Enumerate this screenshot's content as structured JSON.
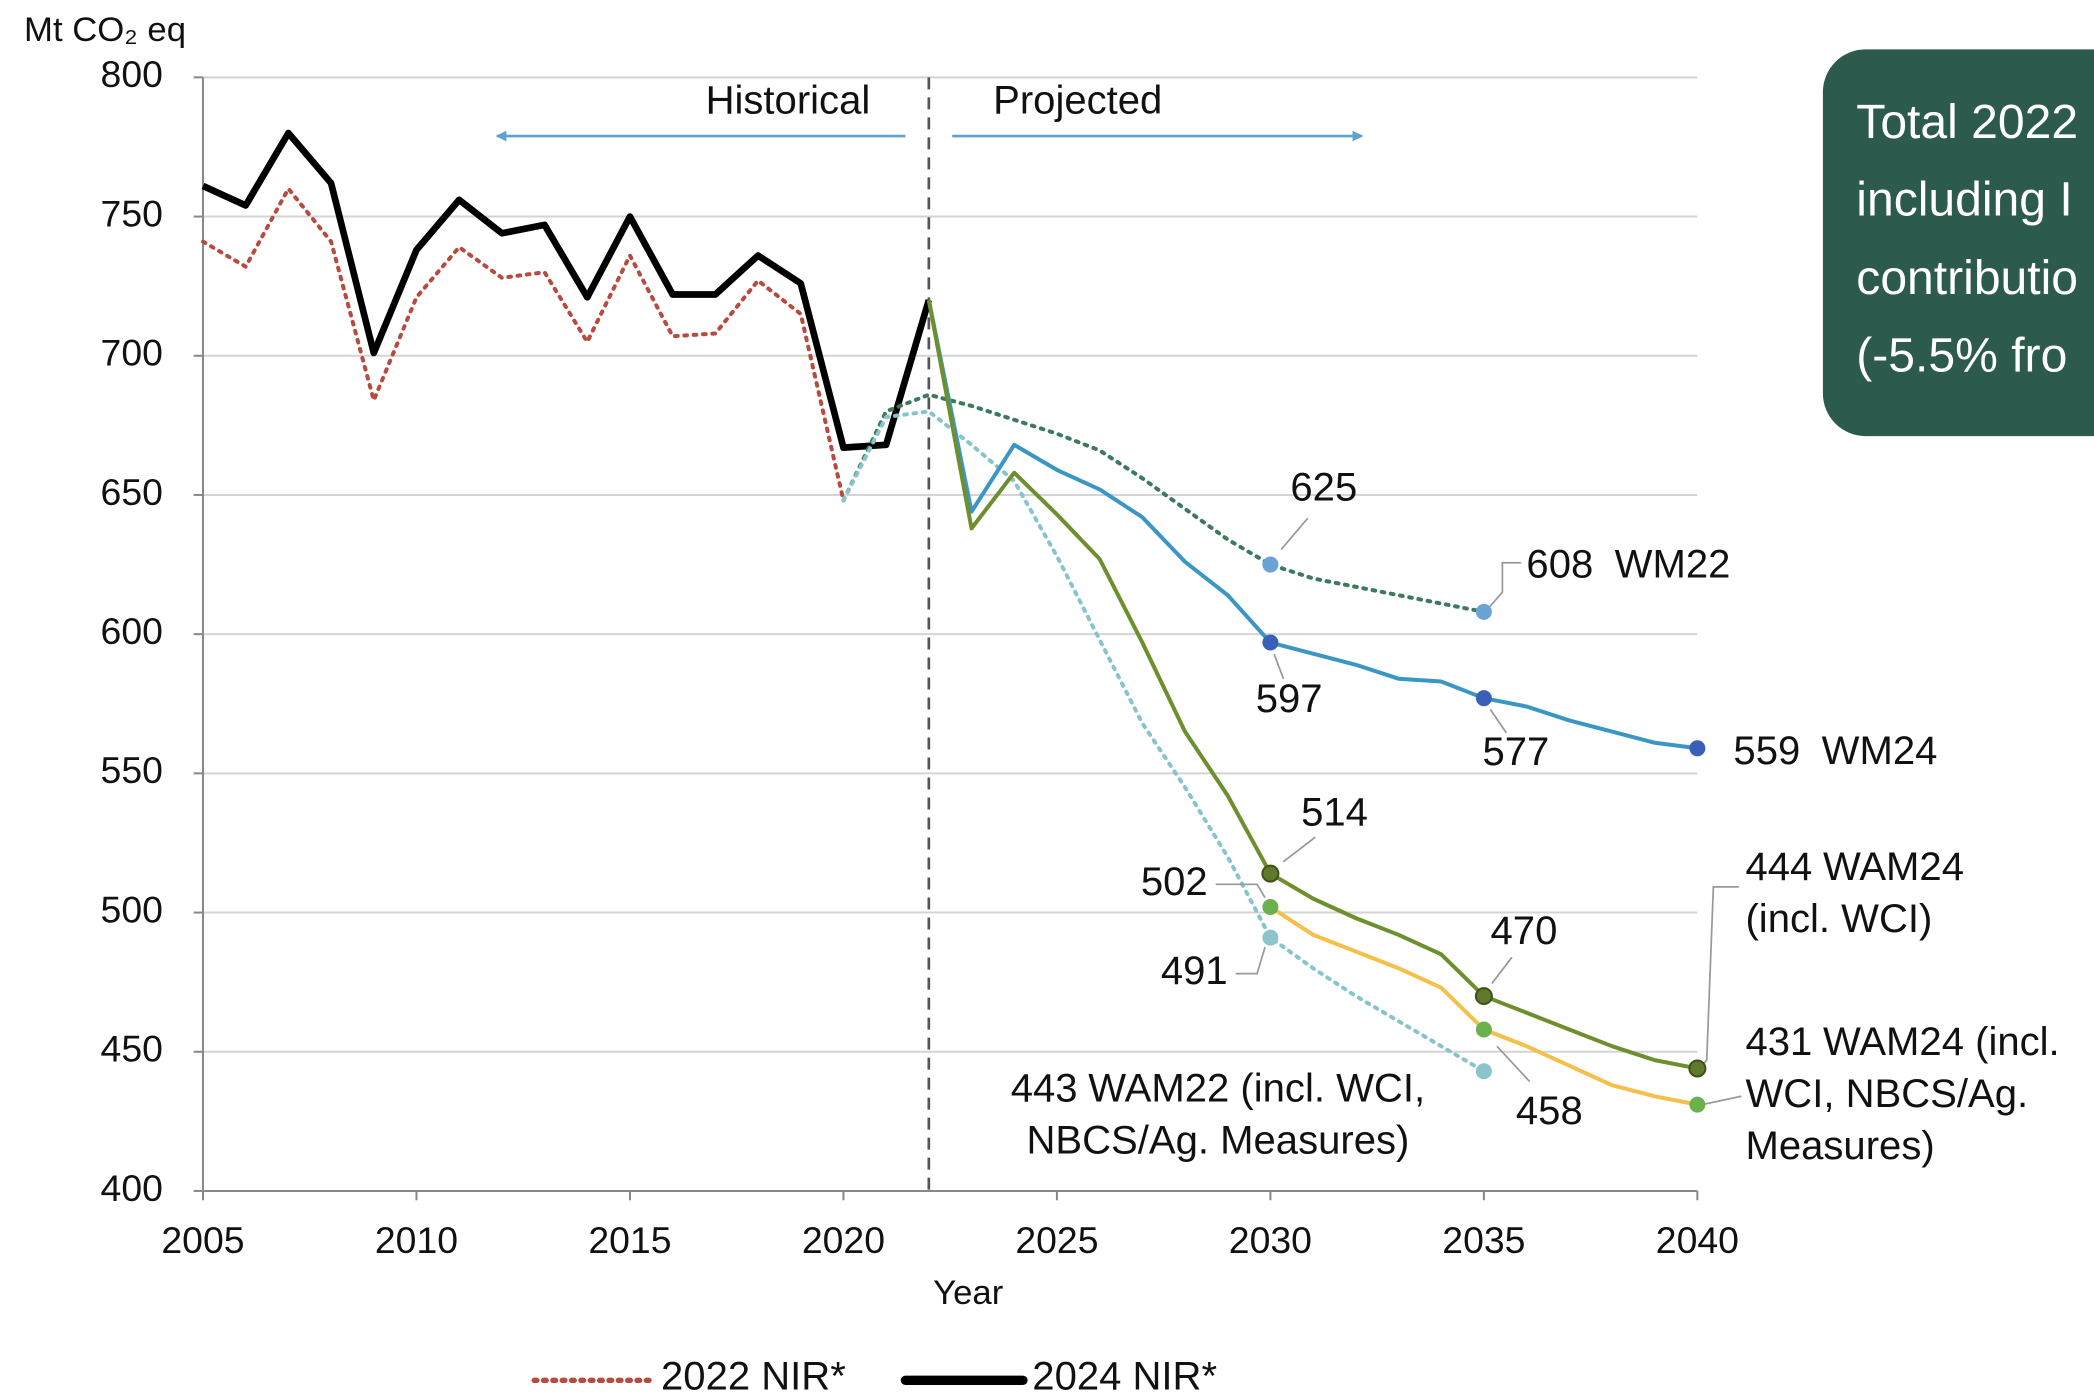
{
  "chart_data": {
    "type": "line",
    "y_label": "Mt CO₂ eq",
    "x_label": "Year",
    "annotations": [
      "Historical",
      "Projected"
    ],
    "divider_x": 2022,
    "xlim": [
      2005,
      2040
    ],
    "xticks": [
      2005,
      2010,
      2015,
      2020,
      2025,
      2030,
      2035,
      2040
    ],
    "ylim": [
      400,
      800
    ],
    "yticks": [
      400,
      450,
      500,
      550,
      600,
      650,
      700,
      750,
      800
    ],
    "grid": true,
    "legend_position": "bottom",
    "x": [
      2005,
      2006,
      2007,
      2008,
      2009,
      2010,
      2011,
      2012,
      2013,
      2014,
      2015,
      2016,
      2017,
      2018,
      2019,
      2020,
      2021,
      2022,
      2023,
      2024,
      2025,
      2026,
      2027,
      2028,
      2029,
      2030,
      2031,
      2032,
      2033,
      2034,
      2035,
      2036,
      2037,
      2038,
      2039,
      2040
    ],
    "series": [
      {
        "name": "2022 NIR*",
        "color": "#b84a3e",
        "dotted": true,
        "width": 3,
        "legend": true,
        "markers": [],
        "values": [
          741,
          732,
          760,
          741,
          684,
          721,
          739,
          728,
          730,
          705,
          736,
          707,
          708,
          727,
          715,
          648,
          null,
          null,
          null,
          null,
          null,
          null,
          null,
          null,
          null,
          null,
          null,
          null,
          null,
          null,
          null,
          null,
          null,
          null,
          null,
          null
        ]
      },
      {
        "name": "2024 NIR*",
        "color": "#000000",
        "dotted": false,
        "width": 5,
        "legend": true,
        "markers": [],
        "values": [
          761,
          754,
          780,
          762,
          701,
          738,
          756,
          744,
          747,
          721,
          750,
          722,
          722,
          736,
          726,
          667,
          668,
          720,
          null,
          null,
          null,
          null,
          null,
          null,
          null,
          null,
          null,
          null,
          null,
          null,
          null,
          null,
          null,
          null,
          null,
          null
        ]
      },
      {
        "name": "WM22",
        "color": "#3d7a5c",
        "marker_color": "#6aa3d5",
        "dotted": true,
        "width": 3,
        "legend": false,
        "markers": [
          2030,
          2035
        ],
        "values": [
          null,
          null,
          null,
          null,
          null,
          null,
          null,
          null,
          null,
          null,
          null,
          null,
          null,
          null,
          null,
          648,
          680,
          686,
          682,
          677,
          672,
          666,
          656,
          645,
          634,
          625,
          620,
          617,
          614,
          611,
          608,
          null,
          null,
          null,
          null,
          null
        ]
      },
      {
        "name": "WAM22 (incl. WCI, NBCS/Ag. Measures)",
        "color": "#86c5cc",
        "marker_color": "#8cc4cc",
        "dotted": true,
        "width": 3,
        "legend": false,
        "markers": [
          2030,
          2035
        ],
        "values": [
          null,
          null,
          null,
          null,
          null,
          null,
          null,
          null,
          null,
          null,
          null,
          null,
          null,
          null,
          null,
          648,
          678,
          680,
          668,
          655,
          628,
          598,
          568,
          545,
          520,
          491,
          480,
          470,
          461,
          452,
          443,
          null,
          null,
          null,
          null,
          null
        ]
      },
      {
        "name": "WM24",
        "color": "#3a97c4",
        "marker_color": "#3a5fb8",
        "dotted": false,
        "width": 3,
        "legend": false,
        "markers": [
          2030,
          2035,
          2040
        ],
        "values": [
          null,
          null,
          null,
          null,
          null,
          null,
          null,
          null,
          null,
          null,
          null,
          null,
          null,
          null,
          null,
          null,
          null,
          720,
          644,
          668,
          659,
          652,
          642,
          626,
          614,
          597,
          593,
          589,
          584,
          583,
          577,
          574,
          569,
          565,
          561,
          559
        ]
      },
      {
        "name": "WAM24 (incl. WCI)",
        "color": "#6e8f2e",
        "marker_color": "#5f7a2a",
        "dotted": false,
        "width": 3,
        "legend": false,
        "markers": [
          2030,
          2035,
          2040
        ],
        "values": [
          null,
          null,
          null,
          null,
          null,
          null,
          null,
          null,
          null,
          null,
          null,
          null,
          null,
          null,
          null,
          null,
          null,
          720,
          638,
          658,
          643,
          627,
          597,
          565,
          542,
          514,
          505,
          498,
          492,
          485,
          470,
          464,
          458,
          452,
          447,
          444
        ]
      },
      {
        "name": "WAM24 (incl. WCI, NBCS/Ag. Measures)",
        "color": "#f5c04a",
        "marker_color": "#6ab04c",
        "dotted": false,
        "width": 3,
        "legend": false,
        "markers": [
          2030,
          2035,
          2040
        ],
        "values": [
          null,
          null,
          null,
          null,
          null,
          null,
          null,
          null,
          null,
          null,
          null,
          null,
          null,
          null,
          null,
          null,
          null,
          null,
          null,
          null,
          null,
          null,
          null,
          null,
          null,
          502,
          492,
          486,
          480,
          473,
          458,
          452,
          445,
          438,
          434,
          431
        ]
      }
    ]
  },
  "box": {
    "lines": [
      "Total 2022",
      "including I",
      "contributio",
      "(-5.5% fro"
    ]
  }
}
